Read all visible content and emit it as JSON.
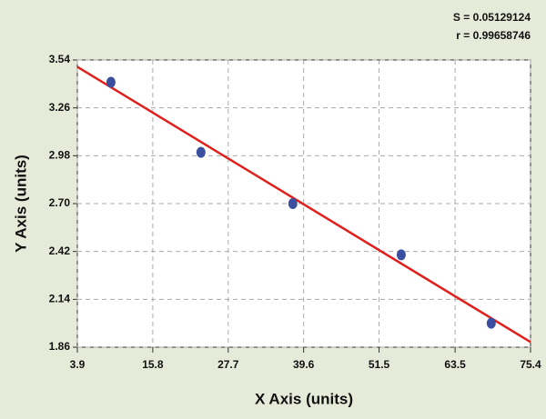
{
  "chart_data": {
    "type": "scatter",
    "annotations": [
      "S = 0.05129124",
      "r = 0.99658746"
    ],
    "x_label": "X Axis (units)",
    "y_label": "Y Axis (units)",
    "x": [
      9.2,
      23.4,
      37.9,
      55.0,
      69.2
    ],
    "values": [
      3.41,
      3.0,
      2.7,
      2.4,
      2.0
    ],
    "color": "#3a4fa0",
    "fit_line": {
      "x": [
        3.9,
        75.4
      ],
      "y": [
        3.5,
        1.89
      ],
      "color": "#e0201c"
    },
    "xlim": [
      3.9,
      75.4
    ],
    "xticks": [
      3.9,
      15.8,
      27.7,
      39.6,
      51.5,
      63.5,
      75.4
    ],
    "ylim": [
      1.86,
      3.54
    ],
    "yticks": [
      1.86,
      2.14,
      2.42,
      {
        "value": 2.7,
        "label": "2.70"
      },
      2.98,
      3.26,
      3.54
    ],
    "grid": true
  }
}
